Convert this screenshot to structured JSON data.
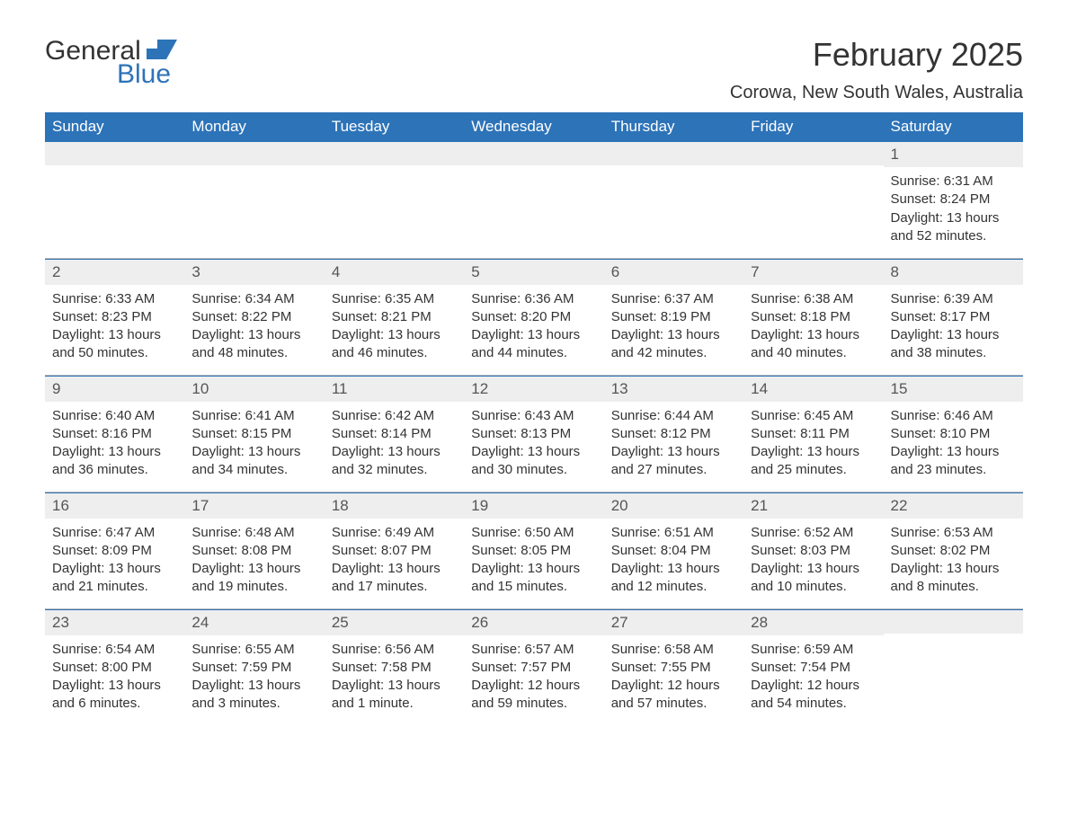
{
  "logo": {
    "text1": "General",
    "text2": "Blue"
  },
  "header": {
    "title": "February 2025",
    "location": "Corowa, New South Wales, Australia"
  },
  "colors": {
    "header_bg": "#2d73b8",
    "header_fg": "#ffffff",
    "daynum_bg": "#eeeeee",
    "border": "#2d73b8",
    "text": "#333333",
    "logo_blue": "#2d73b8"
  },
  "columns": [
    "Sunday",
    "Monday",
    "Tuesday",
    "Wednesday",
    "Thursday",
    "Friday",
    "Saturday"
  ],
  "weeks": [
    [
      null,
      null,
      null,
      null,
      null,
      null,
      {
        "num": "1",
        "sunrise": "Sunrise: 6:31 AM",
        "sunset": "Sunset: 8:24 PM",
        "daylight": "Daylight: 13 hours and 52 minutes."
      }
    ],
    [
      {
        "num": "2",
        "sunrise": "Sunrise: 6:33 AM",
        "sunset": "Sunset: 8:23 PM",
        "daylight": "Daylight: 13 hours and 50 minutes."
      },
      {
        "num": "3",
        "sunrise": "Sunrise: 6:34 AM",
        "sunset": "Sunset: 8:22 PM",
        "daylight": "Daylight: 13 hours and 48 minutes."
      },
      {
        "num": "4",
        "sunrise": "Sunrise: 6:35 AM",
        "sunset": "Sunset: 8:21 PM",
        "daylight": "Daylight: 13 hours and 46 minutes."
      },
      {
        "num": "5",
        "sunrise": "Sunrise: 6:36 AM",
        "sunset": "Sunset: 8:20 PM",
        "daylight": "Daylight: 13 hours and 44 minutes."
      },
      {
        "num": "6",
        "sunrise": "Sunrise: 6:37 AM",
        "sunset": "Sunset: 8:19 PM",
        "daylight": "Daylight: 13 hours and 42 minutes."
      },
      {
        "num": "7",
        "sunrise": "Sunrise: 6:38 AM",
        "sunset": "Sunset: 8:18 PM",
        "daylight": "Daylight: 13 hours and 40 minutes."
      },
      {
        "num": "8",
        "sunrise": "Sunrise: 6:39 AM",
        "sunset": "Sunset: 8:17 PM",
        "daylight": "Daylight: 13 hours and 38 minutes."
      }
    ],
    [
      {
        "num": "9",
        "sunrise": "Sunrise: 6:40 AM",
        "sunset": "Sunset: 8:16 PM",
        "daylight": "Daylight: 13 hours and 36 minutes."
      },
      {
        "num": "10",
        "sunrise": "Sunrise: 6:41 AM",
        "sunset": "Sunset: 8:15 PM",
        "daylight": "Daylight: 13 hours and 34 minutes."
      },
      {
        "num": "11",
        "sunrise": "Sunrise: 6:42 AM",
        "sunset": "Sunset: 8:14 PM",
        "daylight": "Daylight: 13 hours and 32 minutes."
      },
      {
        "num": "12",
        "sunrise": "Sunrise: 6:43 AM",
        "sunset": "Sunset: 8:13 PM",
        "daylight": "Daylight: 13 hours and 30 minutes."
      },
      {
        "num": "13",
        "sunrise": "Sunrise: 6:44 AM",
        "sunset": "Sunset: 8:12 PM",
        "daylight": "Daylight: 13 hours and 27 minutes."
      },
      {
        "num": "14",
        "sunrise": "Sunrise: 6:45 AM",
        "sunset": "Sunset: 8:11 PM",
        "daylight": "Daylight: 13 hours and 25 minutes."
      },
      {
        "num": "15",
        "sunrise": "Sunrise: 6:46 AM",
        "sunset": "Sunset: 8:10 PM",
        "daylight": "Daylight: 13 hours and 23 minutes."
      }
    ],
    [
      {
        "num": "16",
        "sunrise": "Sunrise: 6:47 AM",
        "sunset": "Sunset: 8:09 PM",
        "daylight": "Daylight: 13 hours and 21 minutes."
      },
      {
        "num": "17",
        "sunrise": "Sunrise: 6:48 AM",
        "sunset": "Sunset: 8:08 PM",
        "daylight": "Daylight: 13 hours and 19 minutes."
      },
      {
        "num": "18",
        "sunrise": "Sunrise: 6:49 AM",
        "sunset": "Sunset: 8:07 PM",
        "daylight": "Daylight: 13 hours and 17 minutes."
      },
      {
        "num": "19",
        "sunrise": "Sunrise: 6:50 AM",
        "sunset": "Sunset: 8:05 PM",
        "daylight": "Daylight: 13 hours and 15 minutes."
      },
      {
        "num": "20",
        "sunrise": "Sunrise: 6:51 AM",
        "sunset": "Sunset: 8:04 PM",
        "daylight": "Daylight: 13 hours and 12 minutes."
      },
      {
        "num": "21",
        "sunrise": "Sunrise: 6:52 AM",
        "sunset": "Sunset: 8:03 PM",
        "daylight": "Daylight: 13 hours and 10 minutes."
      },
      {
        "num": "22",
        "sunrise": "Sunrise: 6:53 AM",
        "sunset": "Sunset: 8:02 PM",
        "daylight": "Daylight: 13 hours and 8 minutes."
      }
    ],
    [
      {
        "num": "23",
        "sunrise": "Sunrise: 6:54 AM",
        "sunset": "Sunset: 8:00 PM",
        "daylight": "Daylight: 13 hours and 6 minutes."
      },
      {
        "num": "24",
        "sunrise": "Sunrise: 6:55 AM",
        "sunset": "Sunset: 7:59 PM",
        "daylight": "Daylight: 13 hours and 3 minutes."
      },
      {
        "num": "25",
        "sunrise": "Sunrise: 6:56 AM",
        "sunset": "Sunset: 7:58 PM",
        "daylight": "Daylight: 13 hours and 1 minute."
      },
      {
        "num": "26",
        "sunrise": "Sunrise: 6:57 AM",
        "sunset": "Sunset: 7:57 PM",
        "daylight": "Daylight: 12 hours and 59 minutes."
      },
      {
        "num": "27",
        "sunrise": "Sunrise: 6:58 AM",
        "sunset": "Sunset: 7:55 PM",
        "daylight": "Daylight: 12 hours and 57 minutes."
      },
      {
        "num": "28",
        "sunrise": "Sunrise: 6:59 AM",
        "sunset": "Sunset: 7:54 PM",
        "daylight": "Daylight: 12 hours and 54 minutes."
      },
      null
    ]
  ]
}
